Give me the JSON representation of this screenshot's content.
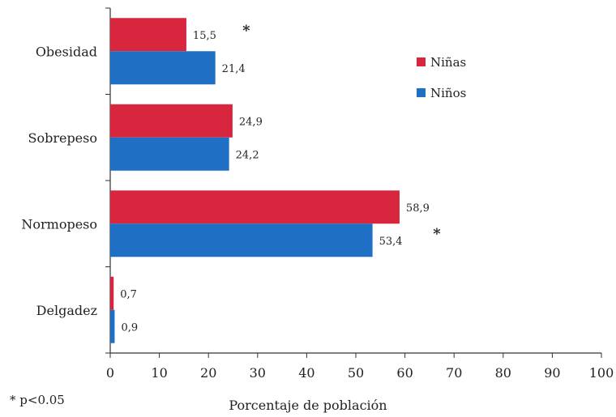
{
  "chart_data": {
    "type": "bar",
    "orientation": "horizontal",
    "categories": [
      "Obesidad",
      "Sobrepeso",
      "Normopeso",
      "Delgadez"
    ],
    "series": [
      {
        "name": "Niñas",
        "values": [
          15.5,
          24.9,
          58.9,
          0.7
        ],
        "value_labels": [
          "15,5",
          "24,9",
          "58,9",
          "0,7"
        ],
        "color": "#d7263d"
      },
      {
        "name": "Niños",
        "values": [
          21.4,
          24.2,
          53.4,
          0.9
        ],
        "value_labels": [
          "21,4",
          "24,2",
          "53,4",
          "0,9"
        ],
        "color": "#1f6fc5"
      }
    ],
    "xlabel": "Porcentaje de población",
    "ylabel": "",
    "xlim": [
      0,
      100
    ],
    "xticks": [
      "0",
      "10",
      "20",
      "30",
      "40",
      "50",
      "60",
      "70",
      "80",
      "90",
      "100"
    ],
    "legend_position": "upper-right",
    "grid": false,
    "significance_markers": [
      {
        "category": "Obesidad",
        "symbol": "*"
      },
      {
        "category": "Normopeso",
        "symbol": "*"
      }
    ],
    "footnote": "* p<0.05"
  }
}
